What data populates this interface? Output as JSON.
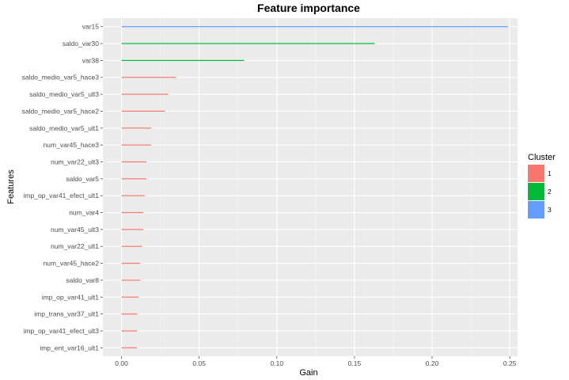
{
  "chart_data": {
    "type": "bar",
    "orientation": "horizontal",
    "title": "Feature importance",
    "xlabel": "Gain",
    "ylabel": "Features",
    "xlim": [
      -0.012,
      0.255
    ],
    "xticks": [
      0.0,
      0.05,
      0.1,
      0.15,
      0.2,
      0.25
    ],
    "xtick_labels": [
      "0.00",
      "0.05",
      "0.10",
      "0.15",
      "0.20",
      "0.25"
    ],
    "grid": true,
    "legend": {
      "title": "Cluster",
      "placement": "right",
      "entries": [
        {
          "label": "1",
          "color": "#F8766D"
        },
        {
          "label": "2",
          "color": "#00BA38"
        },
        {
          "label": "3",
          "color": "#619CFF"
        }
      ]
    },
    "categories": [
      "var15",
      "saldo_var30",
      "var38",
      "saldo_medio_var5_hace3",
      "saldo_medio_var5_ult3",
      "saldo_medio_var5_hace2",
      "saldo_medio_var5_ult1",
      "num_var45_hace3",
      "num_var22_ult3",
      "saldo_var5",
      "imp_op_var41_efect_ult1",
      "num_var4",
      "num_var45_ult3",
      "num_var22_ult1",
      "num_var45_hace2",
      "saldo_var8",
      "imp_op_var41_ult1",
      "imp_trans_var37_ult1",
      "imp_op_var41_efect_ult3",
      "imp_ent_var16_ult1"
    ],
    "values": [
      0.249,
      0.163,
      0.079,
      0.035,
      0.03,
      0.028,
      0.019,
      0.019,
      0.016,
      0.016,
      0.015,
      0.014,
      0.014,
      0.013,
      0.012,
      0.012,
      0.011,
      0.01,
      0.01,
      0.01
    ],
    "clusters": [
      "3",
      "2",
      "2",
      "1",
      "1",
      "1",
      "1",
      "1",
      "1",
      "1",
      "1",
      "1",
      "1",
      "1",
      "1",
      "1",
      "1",
      "1",
      "1",
      "1"
    ]
  }
}
